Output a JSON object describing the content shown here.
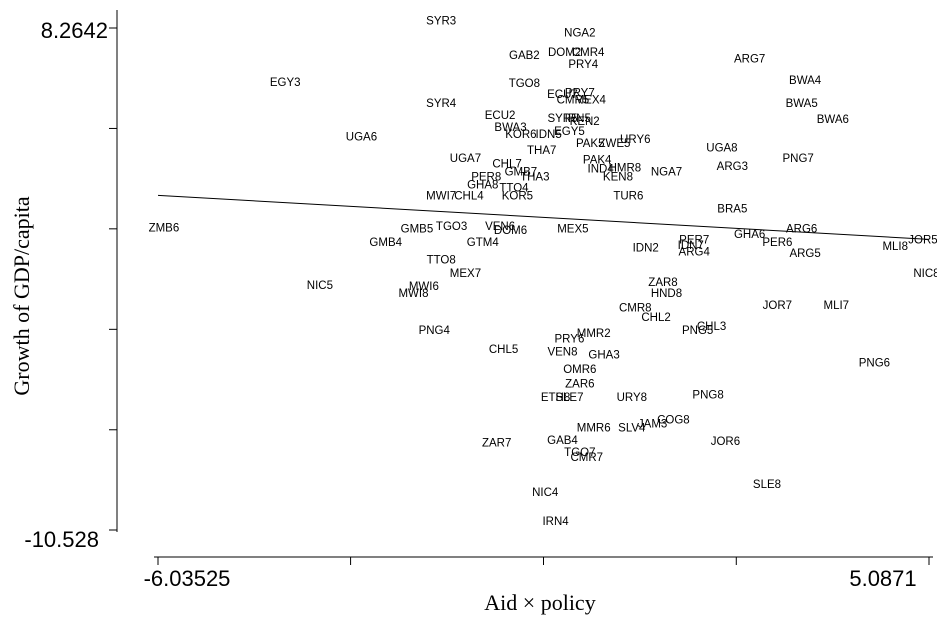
{
  "chart_data": {
    "type": "scatter",
    "title": "",
    "xlabel": "Aid × policy",
    "ylabel": "Growth of GDP/capita",
    "xlim": [
      -6.03525,
      5.0871
    ],
    "ylim": [
      -10.528,
      8.2642
    ],
    "x_tick_labels": [
      "-6.03525",
      "5.0871"
    ],
    "y_tick_labels": [
      "8.2642",
      "-10.528"
    ],
    "x_ticks": [
      -6.03525,
      -3.257,
      -0.474,
      2.307,
      5.0871
    ],
    "y_ticks": [
      8.2642,
      4.504,
      0.746,
      -3.016,
      -6.776,
      -10.528
    ],
    "grid": false,
    "legend": "none",
    "fit_line": {
      "x": [
        -6.03525,
        5.0871
      ],
      "y": [
        2.0,
        0.35
      ]
    },
    "points": [
      {
        "label": "SYR3",
        "x": -1.95,
        "y": 8.55
      },
      {
        "label": "NGA2",
        "x": 0.05,
        "y": 8.09
      },
      {
        "label": "DOM2",
        "x": -0.17,
        "y": 7.37
      },
      {
        "label": "CMR4",
        "x": 0.17,
        "y": 7.37
      },
      {
        "label": "GAB2",
        "x": -0.75,
        "y": 7.25
      },
      {
        "label": "PRY4",
        "x": 0.1,
        "y": 6.91
      },
      {
        "label": "ARG7",
        "x": 2.5,
        "y": 7.13
      },
      {
        "label": "EGY3",
        "x": -4.2,
        "y": 6.25
      },
      {
        "label": "BWA4",
        "x": 3.3,
        "y": 6.32
      },
      {
        "label": "TGO8",
        "x": -0.75,
        "y": 6.2
      },
      {
        "label": "ECU7",
        "x": -0.2,
        "y": 5.8
      },
      {
        "label": "PRY7",
        "x": 0.05,
        "y": 5.85
      },
      {
        "label": "SYR4",
        "x": -1.95,
        "y": 5.45
      },
      {
        "label": "CMR5",
        "x": -0.05,
        "y": 5.58
      },
      {
        "label": "MEX4",
        "x": 0.2,
        "y": 5.58
      },
      {
        "label": "BWA5",
        "x": 3.25,
        "y": 5.45
      },
      {
        "label": "ECU2",
        "x": -1.1,
        "y": 5.0
      },
      {
        "label": "SYR5",
        "x": -0.2,
        "y": 4.9
      },
      {
        "label": "IRN5",
        "x": 0.02,
        "y": 4.9
      },
      {
        "label": "KEN2",
        "x": 0.12,
        "y": 4.78
      },
      {
        "label": "BWA6",
        "x": 3.7,
        "y": 4.85
      },
      {
        "label": "UGA6",
        "x": -3.1,
        "y": 4.2
      },
      {
        "label": "BWA3",
        "x": -0.95,
        "y": 4.55
      },
      {
        "label": "KOR6",
        "x": -0.8,
        "y": 4.3
      },
      {
        "label": "IDN5",
        "x": -0.4,
        "y": 4.3
      },
      {
        "label": "EGY5",
        "x": -0.1,
        "y": 4.4
      },
      {
        "label": "URY6",
        "x": 0.85,
        "y": 4.1
      },
      {
        "label": "PAK5",
        "x": 0.2,
        "y": 3.95
      },
      {
        "label": "ZWE5",
        "x": 0.55,
        "y": 3.95
      },
      {
        "label": "UGA8",
        "x": 2.1,
        "y": 3.8
      },
      {
        "label": "THA7",
        "x": -0.5,
        "y": 3.7
      },
      {
        "label": "PAK4",
        "x": 0.3,
        "y": 3.35
      },
      {
        "label": "PNG7",
        "x": 3.2,
        "y": 3.4
      },
      {
        "label": "UGA7",
        "x": -1.6,
        "y": 3.4
      },
      {
        "label": "CHL7",
        "x": -1.0,
        "y": 3.2
      },
      {
        "label": "ARG3",
        "x": 2.25,
        "y": 3.1
      },
      {
        "label": "GMB7",
        "x": -0.8,
        "y": 2.9
      },
      {
        "label": "IND4",
        "x": 0.35,
        "y": 3.0
      },
      {
        "label": "HMR8",
        "x": 0.7,
        "y": 3.05
      },
      {
        "label": "NGA7",
        "x": 1.3,
        "y": 2.9
      },
      {
        "label": "PER8",
        "x": -1.3,
        "y": 2.7
      },
      {
        "label": "THA3",
        "x": -0.6,
        "y": 2.7
      },
      {
        "label": "KEN8",
        "x": 0.6,
        "y": 2.7
      },
      {
        "label": "GHA8",
        "x": -1.35,
        "y": 2.4
      },
      {
        "label": "TTO4",
        "x": -0.9,
        "y": 2.3
      },
      {
        "label": "CHL4",
        "x": -1.55,
        "y": 2.0
      },
      {
        "label": "KOR5",
        "x": -0.85,
        "y": 2.0
      },
      {
        "label": "TUR6",
        "x": 0.75,
        "y": 2.0
      },
      {
        "label": "MWI7",
        "x": -1.95,
        "y": 2.0
      },
      {
        "label": "BRA5",
        "x": 2.25,
        "y": 1.5
      },
      {
        "label": "GMB5",
        "x": -2.3,
        "y": 0.75
      },
      {
        "label": "TGO3",
        "x": -1.8,
        "y": 0.85
      },
      {
        "label": "VEN6",
        "x": -1.1,
        "y": 0.85
      },
      {
        "label": "DOM6",
        "x": -0.95,
        "y": 0.7
      },
      {
        "label": "MEX5",
        "x": -0.05,
        "y": 0.75
      },
      {
        "label": "ZMB6",
        "x": -5.95,
        "y": 0.8
      },
      {
        "label": "GTM4",
        "x": -1.35,
        "y": 0.25
      },
      {
        "label": "GMB4",
        "x": -2.75,
        "y": 0.25
      },
      {
        "label": "GHA6",
        "x": 2.5,
        "y": 0.55
      },
      {
        "label": "ARG6",
        "x": 3.25,
        "y": 0.75
      },
      {
        "label": "PER6",
        "x": 2.9,
        "y": 0.25
      },
      {
        "label": "PER7",
        "x": 1.7,
        "y": 0.35
      },
      {
        "label": "IDN2",
        "x": 1.0,
        "y": 0.05
      },
      {
        "label": "IDN7",
        "x": 1.65,
        "y": 0.15
      },
      {
        "label": "ARG4",
        "x": 1.7,
        "y": -0.1
      },
      {
        "label": "ARG5",
        "x": 3.3,
        "y": -0.15
      },
      {
        "label": "MLI8",
        "x": 4.6,
        "y": 0.1
      },
      {
        "label": "JOR5",
        "x": 5.0,
        "y": 0.35
      },
      {
        "label": "NIC8",
        "x": 5.05,
        "y": -0.9
      },
      {
        "label": "TTO8",
        "x": -1.95,
        "y": -0.4
      },
      {
        "label": "MEX7",
        "x": -1.6,
        "y": -0.9
      },
      {
        "label": "HND8",
        "x": 1.3,
        "y": -1.65
      },
      {
        "label": "ZAR8",
        "x": 1.25,
        "y": -1.25
      },
      {
        "label": "MWI6",
        "x": -2.2,
        "y": -1.4
      },
      {
        "label": "MWI8",
        "x": -2.35,
        "y": -1.65
      },
      {
        "label": "NIC5",
        "x": -3.7,
        "y": -1.35
      },
      {
        "label": "CMR8",
        "x": 0.85,
        "y": -2.2
      },
      {
        "label": "CHL2",
        "x": 1.15,
        "y": -2.55
      },
      {
        "label": "CHL3",
        "x": 1.95,
        "y": -2.9
      },
      {
        "label": "JOR7",
        "x": 2.9,
        "y": -2.1
      },
      {
        "label": "MLI7",
        "x": 3.75,
        "y": -2.1
      },
      {
        "label": "PNG5",
        "x": 1.75,
        "y": -3.05
      },
      {
        "label": "MMR2",
        "x": 0.25,
        "y": -3.15
      },
      {
        "label": "PRY6",
        "x": -0.1,
        "y": -3.35
      },
      {
        "label": "PNG4",
        "x": -2.05,
        "y": -3.05
      },
      {
        "label": "CHL5",
        "x": -1.05,
        "y": -3.75
      },
      {
        "label": "VEN8",
        "x": -0.2,
        "y": -3.85
      },
      {
        "label": "GHA3",
        "x": 0.4,
        "y": -3.95
      },
      {
        "label": "PNG6",
        "x": 4.3,
        "y": -4.25
      },
      {
        "label": "OMR6",
        "x": 0.05,
        "y": -4.5
      },
      {
        "label": "ZAR6",
        "x": 0.05,
        "y": -5.05
      },
      {
        "label": "PNG8",
        "x": 1.9,
        "y": -5.45
      },
      {
        "label": "URY8",
        "x": 0.8,
        "y": -5.55
      },
      {
        "label": "SLE7",
        "x": -0.1,
        "y": -5.55
      },
      {
        "label": "ETH8",
        "x": -0.3,
        "y": -5.55
      },
      {
        "label": "MMR6",
        "x": 0.25,
        "y": -6.7
      },
      {
        "label": "SLV4",
        "x": 0.8,
        "y": -6.7
      },
      {
        "label": "JAM3",
        "x": 1.1,
        "y": -6.55
      },
      {
        "label": "COG8",
        "x": 1.4,
        "y": -6.4
      },
      {
        "label": "JOR6",
        "x": 2.15,
        "y": -7.2
      },
      {
        "label": "ZAR7",
        "x": -1.15,
        "y": -7.25
      },
      {
        "label": "GAB4",
        "x": -0.2,
        "y": -7.15
      },
      {
        "label": "TGO7",
        "x": 0.05,
        "y": -7.6
      },
      {
        "label": "CMR7",
        "x": 0.15,
        "y": -7.8
      },
      {
        "label": "SLE8",
        "x": 2.75,
        "y": -8.8
      },
      {
        "label": "NIC4",
        "x": -0.45,
        "y": -9.1
      },
      {
        "label": "IRN4",
        "x": -0.3,
        "y": -10.2
      }
    ]
  }
}
